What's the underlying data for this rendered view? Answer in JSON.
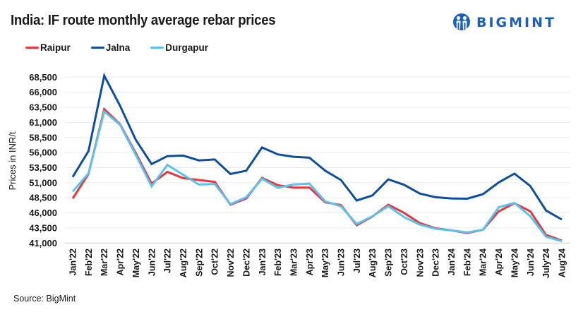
{
  "header": {
    "title": "India: IF route monthly average rebar prices",
    "logo_text": "BIGMINT",
    "logo_icon": "bigmint-people-icon",
    "logo_color": "#1a5fc0"
  },
  "footer": {
    "source": "Source: BigMint"
  },
  "chart_data": {
    "type": "line",
    "title": "India: IF route monthly average rebar prices",
    "xlabel": "",
    "ylabel": "Prices in INR/t",
    "ylim": [
      41000,
      68500
    ],
    "yticks": [
      41000,
      43500,
      46000,
      48500,
      51000,
      53500,
      56000,
      58500,
      61000,
      63500,
      66000,
      68500
    ],
    "ytick_labels": [
      "41,000",
      "43,500",
      "46,000",
      "48,500",
      "51,000",
      "53,500",
      "56,000",
      "58,500",
      "61,000",
      "63,500",
      "66,000",
      "68,500"
    ],
    "grid": "horizontal",
    "legend_position": "top-left",
    "categories": [
      "Jan'22",
      "Feb'22",
      "Mar'22",
      "Apr'22",
      "May'22",
      "Jun'22",
      "Jul'22",
      "Aug'22",
      "Sep'22",
      "Oct'22",
      "Nov'22",
      "Dec'22",
      "Jan'23",
      "Feb'23",
      "Mar'23",
      "Apr'23",
      "May'23",
      "Jun'23",
      "Jul'23",
      "Aug'23",
      "Sep'23",
      "Oct'23",
      "Nov'23",
      "Dec'23",
      "Jan'24",
      "Feb'24",
      "Mar'24",
      "Apr'24",
      "May'24",
      "Jun'24",
      "July'24",
      "Aug'24"
    ],
    "series": [
      {
        "name": "Raipur",
        "color": "#e8373a",
        "values": [
          48400,
          52450,
          63200,
          60700,
          55900,
          50850,
          52800,
          51750,
          51450,
          51150,
          47350,
          48400,
          51800,
          50600,
          50200,
          50200,
          47750,
          47300,
          43950,
          45400,
          47350,
          46000,
          44300,
          43450,
          43100,
          42650,
          43200,
          46250,
          47600,
          46250,
          42350,
          41400
        ]
      },
      {
        "name": "Jalna",
        "color": "#0b4ea2",
        "values": [
          51950,
          56250,
          68750,
          63750,
          58100,
          54100,
          55400,
          55500,
          54700,
          54850,
          52450,
          53000,
          56850,
          55700,
          55300,
          55150,
          53000,
          51450,
          48050,
          48900,
          51550,
          50650,
          49200,
          48600,
          48400,
          48350,
          49100,
          51050,
          52500,
          50450,
          46400,
          44900
        ]
      },
      {
        "name": "Durgapur",
        "color": "#5bc2ee",
        "values": [
          49550,
          52550,
          62800,
          60600,
          55600,
          50400,
          53950,
          52300,
          50700,
          50800,
          47450,
          48600,
          51650,
          50150,
          50700,
          50850,
          47900,
          47100,
          44150,
          45450,
          47100,
          45300,
          44050,
          43350,
          43100,
          42750,
          43200,
          46950,
          47650,
          45450,
          42050,
          41300
        ]
      }
    ]
  }
}
